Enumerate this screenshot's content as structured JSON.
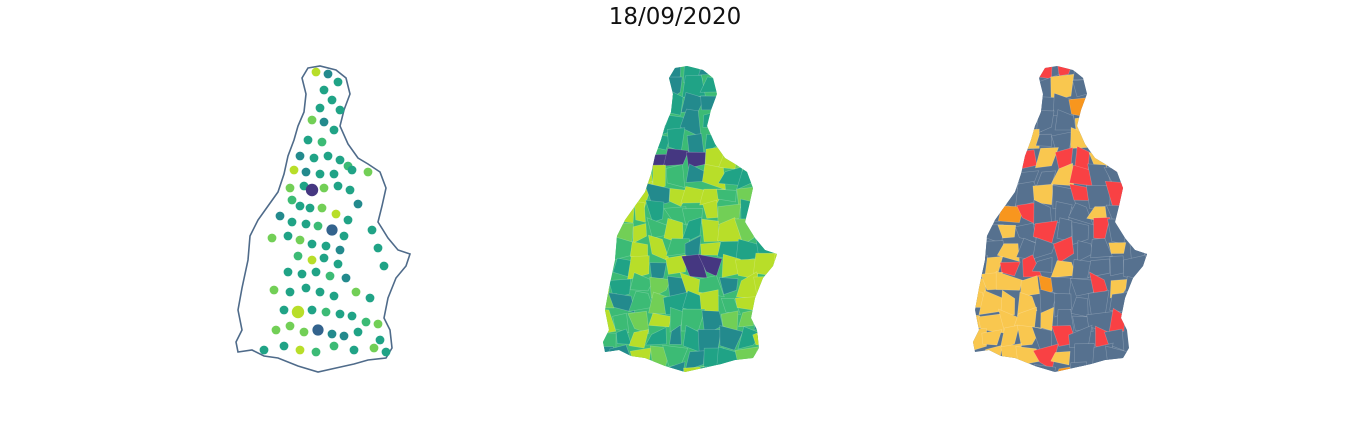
{
  "title": "18/09/2020",
  "maps": [
    {
      "name": "points-map",
      "style": "outline with graduated circle markers",
      "outline_color": "#4f6b8a"
    },
    {
      "name": "choropleth-continuous",
      "style": "filled municipalities, viridis palette"
    },
    {
      "name": "choropleth-categorical",
      "style": "filled municipalities, 4 categories"
    }
  ],
  "palettes": {
    "viridis": [
      "#453781",
      "#33638d",
      "#238a8d",
      "#20a386",
      "#3cbb75",
      "#72cf56",
      "#b8de29"
    ],
    "categorical": {
      "slate": "#56718f",
      "yellow": "#f9c74f",
      "red": "#f94144",
      "orange": "#f8961e"
    }
  }
}
